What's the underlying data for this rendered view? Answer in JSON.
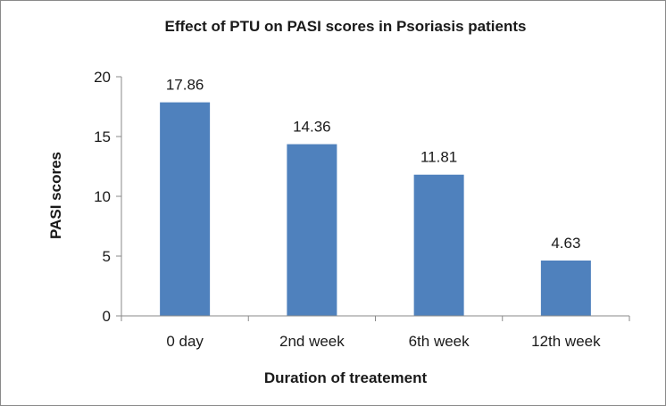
{
  "chart_data": {
    "type": "bar",
    "title": "Effect of PTU on PASI scores in Psoriasis patients",
    "xlabel": "Duration of treatement",
    "ylabel": "PASI scores",
    "categories": [
      "0 day",
      "2nd week",
      "6th week",
      "12th week"
    ],
    "values": [
      17.86,
      14.36,
      11.81,
      4.63
    ],
    "data_labels": [
      "17.86",
      "14.36",
      "11.81",
      "4.63"
    ],
    "ylim": [
      0,
      20
    ],
    "yticks": [
      0,
      5,
      10,
      15,
      20
    ],
    "grid": false,
    "legend": "none",
    "bar_color": "#4f81bd"
  }
}
